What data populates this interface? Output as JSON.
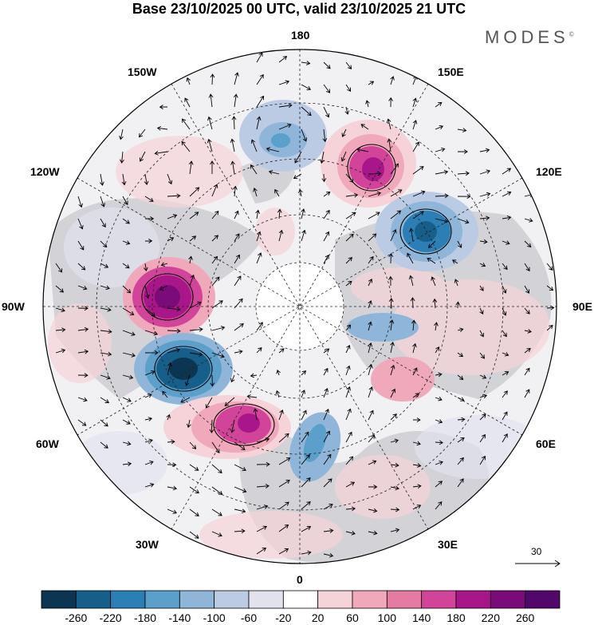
{
  "title": "Base 23/10/2025 00 UTC, valid 23/10/2025 21 UTC",
  "brand": {
    "name": "MODES",
    "mark": "©"
  },
  "longitude_labels": {
    "lon_180": "180",
    "lon_150e": "150E",
    "lon_120e": "120E",
    "lon_90e": "90E",
    "lon_60e": "60E",
    "lon_30e": "30E",
    "lon_0": "0",
    "lon_30w": "30W",
    "lon_60w": "60W",
    "lon_90w": "90W",
    "lon_120w": "120W",
    "lon_150w": "150W"
  },
  "vector_reference": {
    "value": "30"
  },
  "colorbar": {
    "ticks": [
      "-260",
      "-220",
      "-180",
      "-140",
      "-100",
      "-60",
      "-20",
      "20",
      "60",
      "100",
      "140",
      "180",
      "220",
      "260"
    ],
    "colors": [
      "#0b3550",
      "#155f8a",
      "#2b7fb4",
      "#5b9fcb",
      "#8fb6d9",
      "#bccbe4",
      "#e2e2ef",
      "#ffffff",
      "#f6d3d8",
      "#efa9ba",
      "#e57aa2",
      "#d2449a",
      "#a8168a",
      "#7a0b78",
      "#52086b"
    ]
  },
  "colors": {
    "land": "#a8a8a8",
    "background": "#ffffff"
  }
}
